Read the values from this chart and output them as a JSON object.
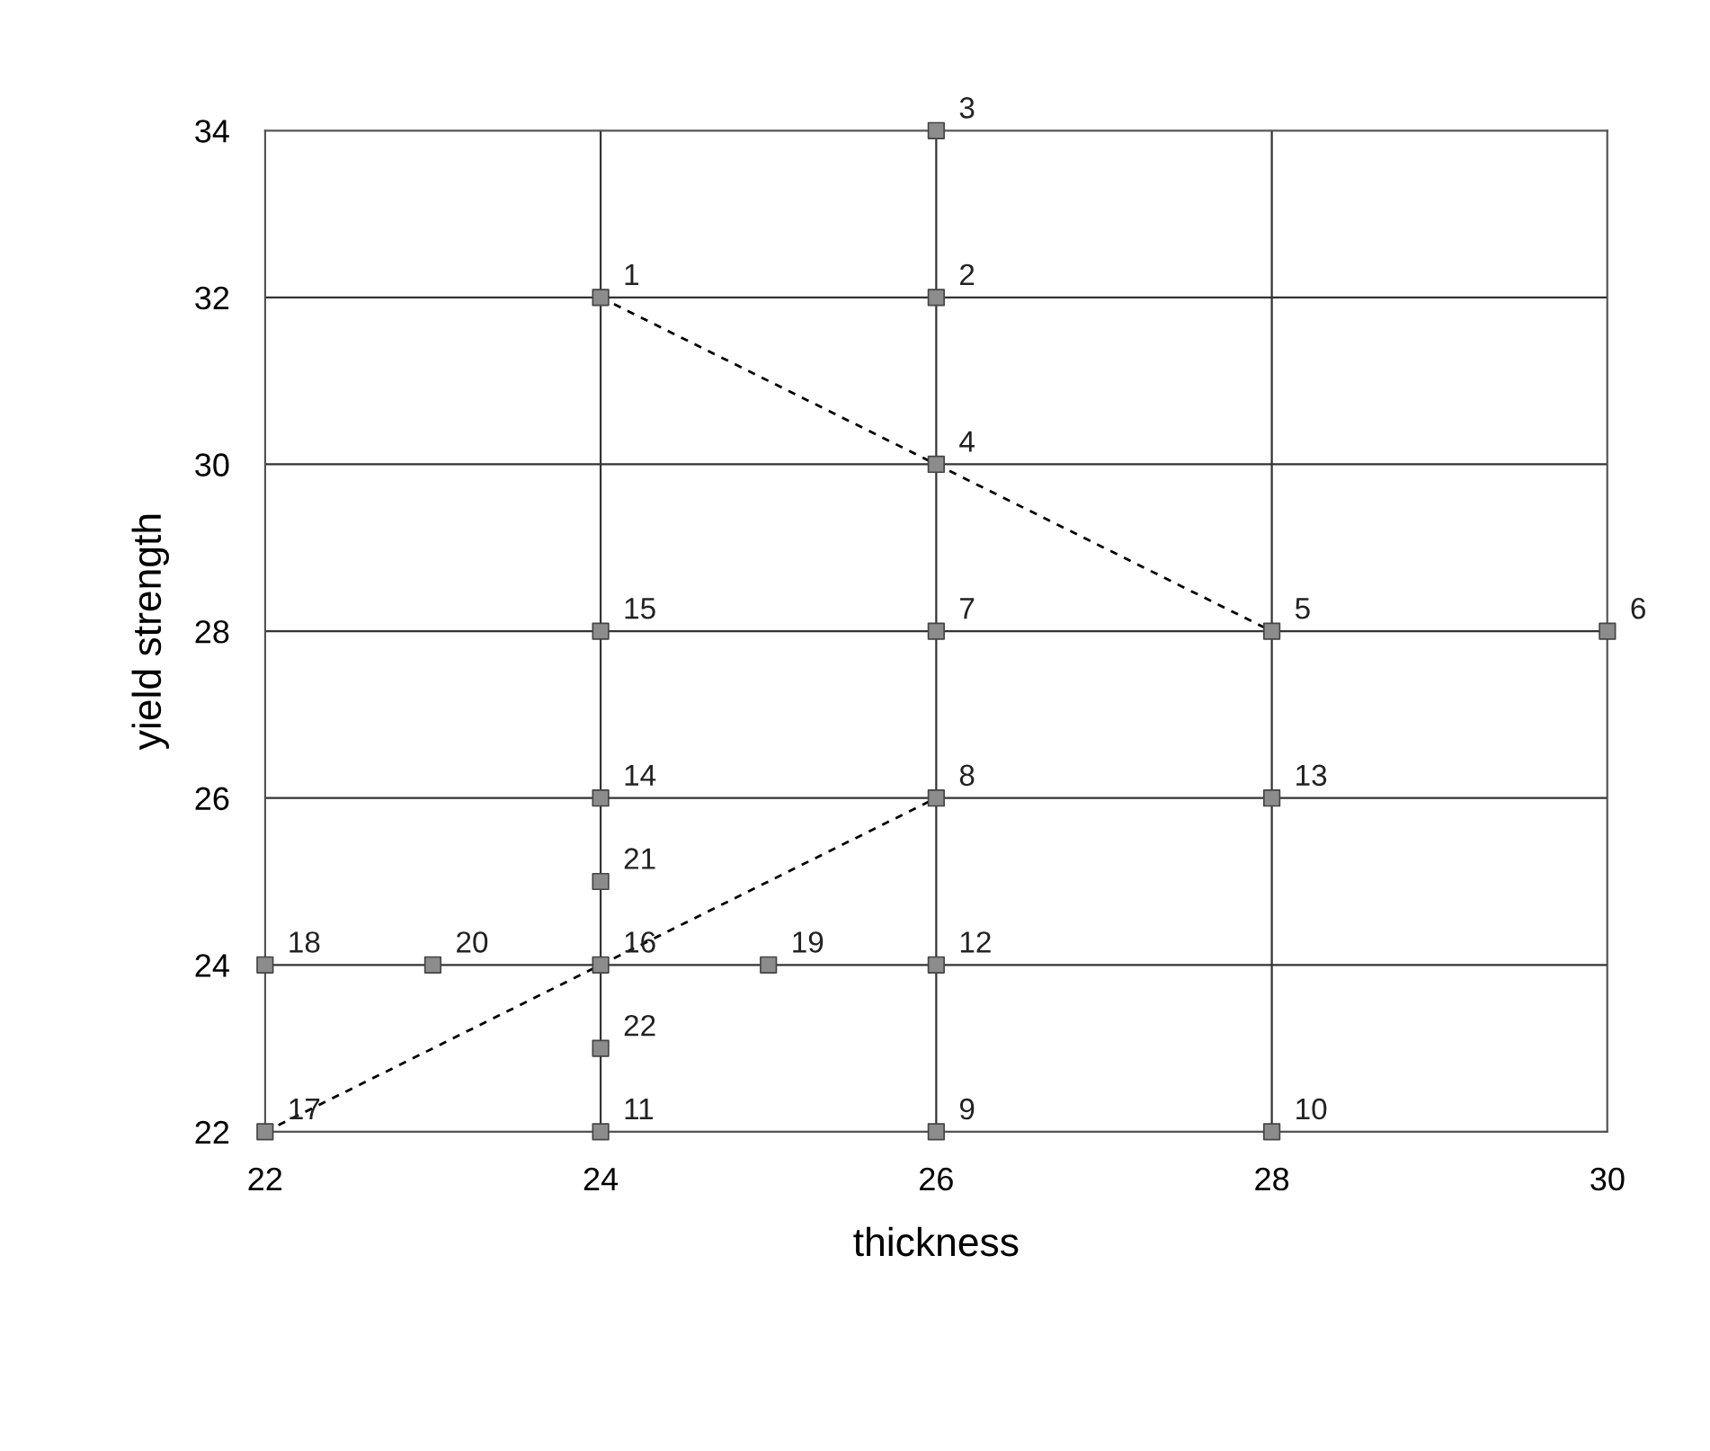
{
  "chart_data": {
    "type": "scatter",
    "xlabel": "thickness",
    "ylabel": "yield strength",
    "xlim": [
      22,
      30
    ],
    "ylim": [
      22,
      34
    ],
    "xticks": [
      22,
      24,
      26,
      28,
      30
    ],
    "yticks": [
      22,
      24,
      26,
      28,
      30,
      32,
      34
    ],
    "grid": true,
    "marker": "square",
    "series": [
      {
        "color": "#8c8c8c",
        "x": [
          24,
          26,
          26,
          26,
          28,
          30,
          26,
          26,
          26,
          28,
          24,
          26,
          28,
          24,
          24,
          24,
          22,
          22,
          25,
          23,
          24,
          24
        ],
        "values": [
          32,
          32,
          34,
          30,
          28,
          28,
          28,
          26,
          22,
          22,
          22,
          24,
          26,
          26,
          28,
          24,
          22,
          24,
          24,
          24,
          25,
          23
        ]
      },
      {
        "type": "line",
        "color": "#000000",
        "line_style": "dashed",
        "marker": "none",
        "x": [
          24,
          26,
          28
        ],
        "values": [
          32,
          30,
          28
        ]
      },
      {
        "type": "line",
        "color": "#000000",
        "line_style": "dashed",
        "marker": "none",
        "x": [
          22,
          24,
          26
        ],
        "values": [
          22,
          24,
          26
        ]
      }
    ],
    "annotations": [
      {
        "text": "1",
        "x": 24,
        "y": 32
      },
      {
        "text": "2",
        "x": 26,
        "y": 32
      },
      {
        "text": "3",
        "x": 26,
        "y": 34
      },
      {
        "text": "4",
        "x": 26,
        "y": 30
      },
      {
        "text": "5",
        "x": 28,
        "y": 28
      },
      {
        "text": "6",
        "x": 30,
        "y": 28
      },
      {
        "text": "7",
        "x": 26,
        "y": 28
      },
      {
        "text": "8",
        "x": 26,
        "y": 26
      },
      {
        "text": "9",
        "x": 26,
        "y": 22
      },
      {
        "text": "10",
        "x": 28,
        "y": 22
      },
      {
        "text": "11",
        "x": 24,
        "y": 22
      },
      {
        "text": "12",
        "x": 26,
        "y": 24
      },
      {
        "text": "13",
        "x": 28,
        "y": 26
      },
      {
        "text": "14",
        "x": 24,
        "y": 26
      },
      {
        "text": "15",
        "x": 24,
        "y": 28
      },
      {
        "text": "16",
        "x": 24,
        "y": 24
      },
      {
        "text": "17",
        "x": 22,
        "y": 22
      },
      {
        "text": "18",
        "x": 22,
        "y": 24
      },
      {
        "text": "19",
        "x": 25,
        "y": 24
      },
      {
        "text": "20",
        "x": 23,
        "y": 24
      },
      {
        "text": "21",
        "x": 24,
        "y": 25
      },
      {
        "text": "22",
        "x": 24,
        "y": 23
      }
    ]
  }
}
